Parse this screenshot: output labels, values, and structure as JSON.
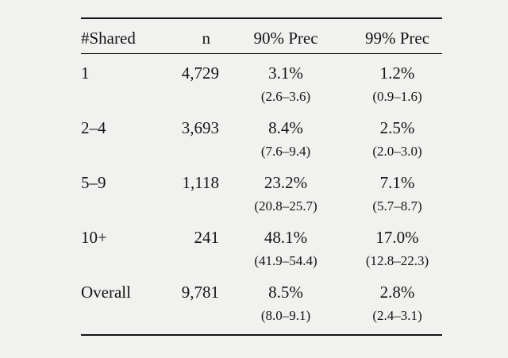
{
  "table": {
    "headers": {
      "shared": "#Shared",
      "n": "n",
      "prec90": "90% Prec",
      "prec99": "99% Prec"
    },
    "rows": [
      {
        "shared": "1",
        "n": "4,729",
        "prec90": "3.1%",
        "prec90_ci": "(2.6–3.6)",
        "prec99": "1.2%",
        "prec99_ci": "(0.9–1.6)"
      },
      {
        "shared": "2–4",
        "n": "3,693",
        "prec90": "8.4%",
        "prec90_ci": "(7.6–9.4)",
        "prec99": "2.5%",
        "prec99_ci": "(2.0–3.0)"
      },
      {
        "shared": "5–9",
        "n": "1,118",
        "prec90": "23.2%",
        "prec90_ci": "(20.8–25.7)",
        "prec99": "7.1%",
        "prec99_ci": "(5.7–8.7)"
      },
      {
        "shared": "10+",
        "n": "241",
        "prec90": "48.1%",
        "prec90_ci": "(41.9–54.4)",
        "prec99": "17.0%",
        "prec99_ci": "(12.8–22.3)"
      },
      {
        "shared": "Overall",
        "n": "9,781",
        "prec90": "8.5%",
        "prec90_ci": "(8.0–9.1)",
        "prec99": "2.8%",
        "prec99_ci": "(2.4–3.1)"
      }
    ],
    "colors": {
      "background": "#f1f1ef",
      "text": "#141414",
      "rule": "#141414"
    }
  }
}
